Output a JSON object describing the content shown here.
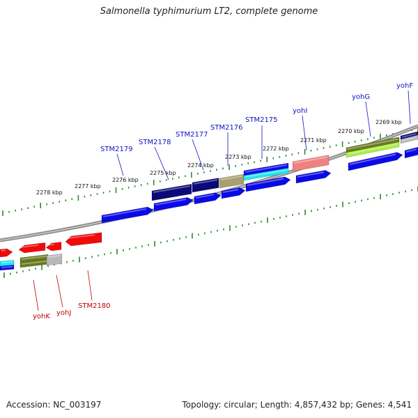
{
  "title": "Salmonella typhimurium LT2, complete genome",
  "footer": {
    "accession": "Accession: NC_003197",
    "summary": "Topology: circular; Length: 4,857,432 bp; Genes: 4,541"
  },
  "colors": {
    "blue": "#0a0ae6",
    "navy": "#0a0a78",
    "khaki": "#a8a070",
    "cyan": "#20e8f0",
    "pink": "#f08080",
    "olive": "#6a7a20",
    "lime": "#a8f040",
    "red": "#f00a0a",
    "grey": "#b8b8b8",
    "green_tick": "#2a8a2a",
    "label_blue": "#1010c0",
    "label_red": "#c00000"
  },
  "kbp_labels": [
    "2278 kbp",
    "2277 kbp",
    "2276 kbp",
    "2275 kbp",
    "2274 kbp",
    "2273 kbp",
    "2272 kbp",
    "2271 kbp",
    "2270 kbp",
    "2269 kbp"
  ],
  "top_gene_labels": [
    "STM2179",
    "STM2178",
    "STM2177",
    "STM2176",
    "STM2175",
    "yohI",
    "yohG",
    "yohF"
  ],
  "bottom_gene_labels": [
    "yohK",
    "yohJ",
    "STM2180"
  ]
}
